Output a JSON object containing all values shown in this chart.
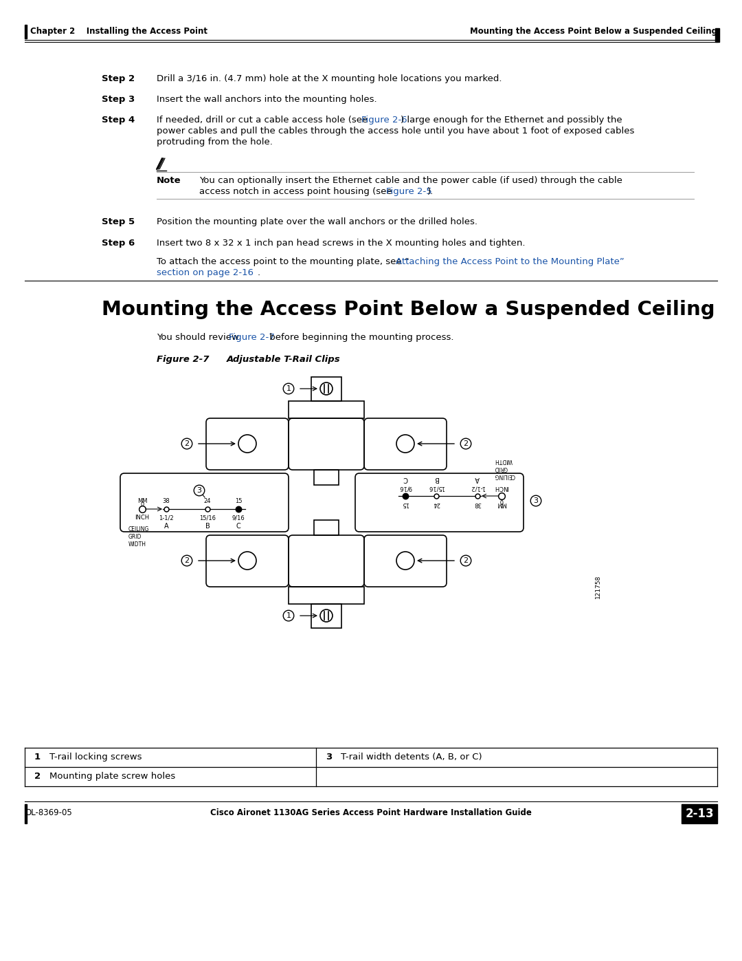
{
  "page_bg": "#ffffff",
  "header_left": "Chapter 2    Installing the Access Point",
  "header_right": "Mounting the Access Point Below a Suspended Ceiling",
  "footer_left": "OL-8369-05",
  "footer_center": "Cisco Aironet 1130AG Series Access Point Hardware Installation Guide",
  "footer_page": "2-13",
  "step2_label": "Step 2",
  "step2_text": "Drill a 3/16 in. (4.7 mm) hole at the X mounting hole locations you marked.",
  "step3_label": "Step 3",
  "step3_text": "Insert the wall anchors into the mounting holes.",
  "step4_label": "Step 4",
  "step4_text1": "If needed, drill or cut a cable access hole (see ",
  "step4_link1": "Figure 2-6",
  "step4_text2": ") large enough for the Ethernet and possibly the",
  "step4_text3": "power cables and pull the cables through the access hole until you have about 1 foot of exposed cables",
  "step4_text4": "protruding from the hole.",
  "note_label": "Note",
  "note_line1": "You can optionally insert the Ethernet cable and the power cable (if used) through the cable",
  "note_line2a": "access notch in access point housing (see ",
  "note_link": "Figure 2-5",
  "note_line2b": ").",
  "step5_label": "Step 5",
  "step5_text": "Position the mounting plate over the wall anchors or the drilled holes.",
  "step6_label": "Step 6",
  "step6_text": "Insert two 8 x 32 x 1 inch pan head screws in the X mounting holes and tighten.",
  "step6_line2a": "To attach the access point to the mounting plate, see “",
  "step6_link": "Attaching the Access Point to the Mounting Plate”",
  "step6_line3": "section on page 2-16",
  "step6_dot": ".",
  "section_title": "Mounting the Access Point Below a Suspended Ceiling",
  "intro_pre": "You should review ",
  "intro_link": "Figure 2-7",
  "intro_post": " before beginning the mounting process.",
  "fig_label": "Figure 2-7",
  "fig_title": "Adjustable T-Rail Clips",
  "watermark": "121758",
  "table_r1c1_num": "1",
  "table_r1c1_text": "T-rail locking screws",
  "table_r1c2_num": "3",
  "table_r1c2_text": "T-rail width detents (A, B, or C)",
  "table_r2c1_num": "2",
  "table_r2c1_text": "Mounting plate screw holes",
  "link_color": "#1a54a8",
  "text_color": "#000000"
}
